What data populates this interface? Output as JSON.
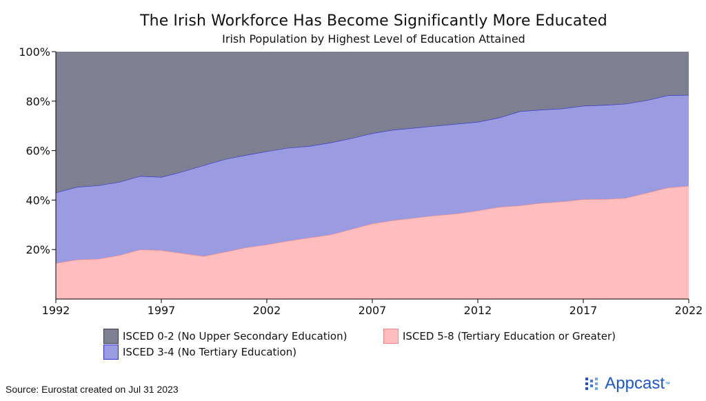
{
  "chart_data": {
    "type": "area",
    "stacked": true,
    "title": "The Irish Workforce Has Become Significantly More Educated",
    "subtitle": "Irish Population by Highest Level of Education Attained",
    "x": [
      1992,
      1993,
      1994,
      1995,
      1996,
      1997,
      1998,
      1999,
      2000,
      2001,
      2002,
      2003,
      2004,
      2005,
      2006,
      2007,
      2008,
      2009,
      2010,
      2011,
      2012,
      2013,
      2014,
      2015,
      2016,
      2017,
      2018,
      2019,
      2020,
      2021,
      2022
    ],
    "xticks": [
      1992,
      1997,
      2002,
      2007,
      2012,
      2017,
      2022
    ],
    "xlim": [
      1992,
      2022
    ],
    "yticks": [
      "20%",
      "40%",
      "60%",
      "80%",
      "100%"
    ],
    "ylim": [
      0,
      100
    ],
    "series": [
      {
        "name": "ISCED 5-8 (Tertiary Education or Greater)",
        "color": "#ffbdbd",
        "stroke": "#f08a8a",
        "values": [
          14.5,
          15.9,
          16.2,
          17.7,
          20.0,
          19.7,
          18.5,
          17.3,
          19.0,
          20.8,
          22.0,
          23.5,
          24.8,
          26.0,
          28.2,
          30.5,
          31.8,
          32.8,
          33.8,
          34.5,
          35.7,
          37.2,
          37.8,
          38.8,
          39.4,
          40.3,
          40.4,
          40.8,
          42.9,
          45.0,
          45.7
        ]
      },
      {
        "name": "ISCED 3-4 (No Tertiary Education)",
        "color": "#9a9be0",
        "stroke": "#2b2fd0",
        "values": [
          28.5,
          29.4,
          29.7,
          29.6,
          29.7,
          29.6,
          33.0,
          36.7,
          37.5,
          37.4,
          37.7,
          37.6,
          37.0,
          37.2,
          36.8,
          36.5,
          36.6,
          36.4,
          36.2,
          36.3,
          35.9,
          36.1,
          38.1,
          37.7,
          37.6,
          37.8,
          38.0,
          38.1,
          37.4,
          37.3,
          36.8
        ]
      },
      {
        "name": "ISCED 0-2 (No Upper Secondary Education)",
        "color": "#7e7f90",
        "stroke": "#5a5b6a",
        "values": [
          57.0,
          54.7,
          54.1,
          52.7,
          50.3,
          50.7,
          48.5,
          46.0,
          43.5,
          41.8,
          40.3,
          38.9,
          38.2,
          36.8,
          35.0,
          33.0,
          31.6,
          30.8,
          30.0,
          29.2,
          28.4,
          26.7,
          24.1,
          23.5,
          23.0,
          21.9,
          21.6,
          21.1,
          19.7,
          17.7,
          17.5
        ]
      }
    ],
    "legend_position": "bottom"
  },
  "legend": {
    "isced_0_2": "ISCED 0-2 (No Upper Secondary Education)",
    "isced_5_8": "ISCED 5-8 (Tertiary Education or Greater)",
    "isced_3_4": "ISCED 3-4 (No Tertiary Education)"
  },
  "source": "Source: Eurostat created on Jul 31 2023",
  "brand": {
    "name": "Appcast",
    "mark": "™",
    "color": "#1d55d3"
  }
}
